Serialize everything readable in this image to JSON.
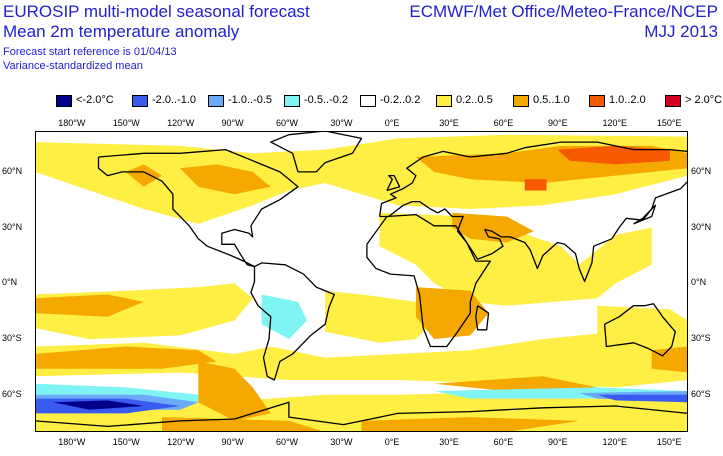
{
  "header": {
    "title_line1": "EUROSIP multi-model seasonal forecast",
    "title_line2": "Mean 2m temperature anomaly",
    "subtitle_line1": "Forecast start reference is 01/04/13",
    "subtitle_line2": "Variance-standardized mean",
    "centres": "ECMWF/Met Office/Meteo-France/NCEP",
    "season": "MJJ 2013"
  },
  "legend": [
    {
      "label": "<-2.0°C",
      "color": "#00008b"
    },
    {
      "label": "-2.0..-1.0",
      "color": "#3a5bf0"
    },
    {
      "label": "-1.0..-0.5",
      "color": "#6aaaf8"
    },
    {
      "label": "-0.5..-0.2",
      "color": "#7ff4f4"
    },
    {
      "label": "-0.2..0.2",
      "color": "#ffffff"
    },
    {
      "label": "0.2..0.5",
      "color": "#ffee44"
    },
    {
      "label": "0.5..1.0",
      "color": "#f5a800"
    },
    {
      "label": "1.0..2.0",
      "color": "#f55a00"
    },
    {
      "label": "> 2.0°C",
      "color": "#d2001e"
    }
  ],
  "longitude_ticks": [
    "180°W",
    "150°W",
    "120°W",
    "90°W",
    "60°W",
    "30°W",
    "0°E",
    "30°E",
    "60°E",
    "90°E",
    "120°E",
    "150°E"
  ],
  "latitude_ticks": [
    "60°N",
    "30°N",
    "0°N",
    "30°S",
    "60°S"
  ]
}
